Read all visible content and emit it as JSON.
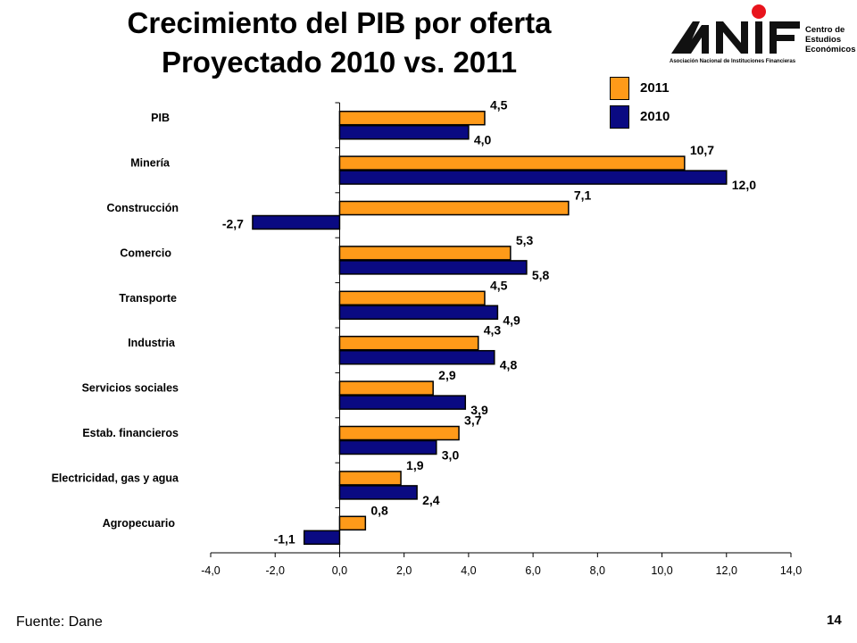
{
  "title": {
    "line1": "Crecimiento del PIB por oferta",
    "line2": "Proyectado 2010 vs. 2011"
  },
  "logo": {
    "brand": "ANIF",
    "text_lines": [
      "Centro de",
      "Estudios",
      "Económicos"
    ],
    "subtitle": "Asociación Nacional de Instituciones Financieras",
    "accent_color": "#e8141c"
  },
  "footer": {
    "source": "Fuente: Dane",
    "page_number": "14"
  },
  "chart_data": {
    "type": "bar",
    "orientation": "horizontal",
    "categories": [
      "PIB",
      "Minería",
      "Construcción",
      "Comercio",
      "Transporte",
      "Industria",
      "Servicios sociales",
      "Estab. financieros",
      "Electricidad, gas y agua",
      "Agropecuario"
    ],
    "series": [
      {
        "name": "2011",
        "color": "#ff9a19",
        "values": [
          4.5,
          10.7,
          7.1,
          5.3,
          4.5,
          4.3,
          2.9,
          3.7,
          1.9,
          0.8
        ],
        "labels": [
          "4,5",
          "10,7",
          "7,1",
          "5,3",
          "4,5",
          "4,3",
          "2,9",
          "3,7",
          "1,9",
          "0,8"
        ]
      },
      {
        "name": "2010",
        "color": "#0a0a82",
        "values": [
          4.0,
          12.0,
          -2.7,
          5.8,
          4.9,
          4.8,
          3.9,
          3.0,
          2.4,
          -1.1
        ],
        "labels": [
          "4,0",
          "12,0",
          "-2,7",
          "5,8",
          "4,9",
          "4,8",
          "3,9",
          "3,0",
          "2,4",
          "-1,1"
        ]
      }
    ],
    "xlim": [
      -4.0,
      14.0
    ],
    "xticks": [
      -4.0,
      -2.0,
      0.0,
      2.0,
      4.0,
      6.0,
      8.0,
      10.0,
      12.0,
      14.0
    ],
    "xtick_labels": [
      "-4,0",
      "-2,0",
      "0,0",
      "2,0",
      "4,0",
      "6,0",
      "8,0",
      "10,0",
      "12,0",
      "14,0"
    ],
    "grid": false,
    "legend_position": "top-right"
  }
}
